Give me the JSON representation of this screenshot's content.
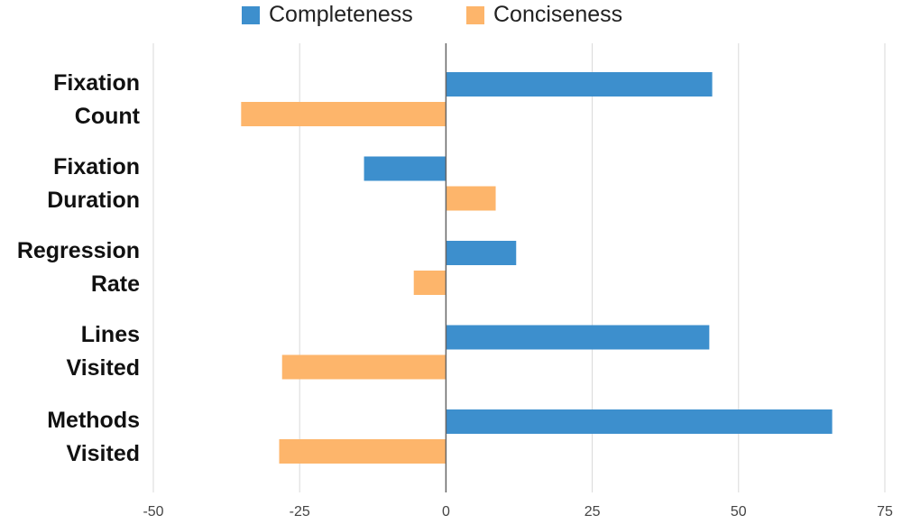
{
  "chart_data": {
    "type": "bar",
    "orientation": "horizontal",
    "categories": [
      [
        "Fixation",
        "Count"
      ],
      [
        "Fixation",
        "Duration"
      ],
      [
        "Regression",
        "Rate"
      ],
      [
        "Lines",
        "Visited"
      ],
      [
        "Methods",
        "Visited"
      ]
    ],
    "series": [
      {
        "name": "Completeness",
        "color": "#3d8fcd",
        "values": [
          45.5,
          -14,
          12,
          45,
          66
        ]
      },
      {
        "name": "Conciseness",
        "color": "#fdb56b",
        "values": [
          -35,
          8.5,
          -5.5,
          -28,
          -28.5
        ]
      }
    ],
    "xlim": [
      -50,
      75
    ],
    "xticks": [
      "-50",
      "-25",
      "0",
      "25",
      "50",
      "75"
    ],
    "grid": true,
    "legend_position": "top"
  }
}
